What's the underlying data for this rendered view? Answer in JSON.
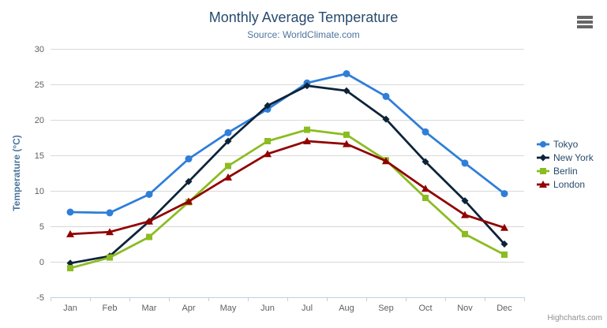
{
  "credits": {
    "label": "Highcharts.com"
  },
  "export_menu": {
    "icon": "hamburger-icon"
  },
  "colors": {
    "title": "#274b6d",
    "subtitle": "#4d759e",
    "axis_label": "#606060",
    "axis_title": "#4d759e",
    "grid": "#d8d8d8",
    "axis_line": "#c0d0e0",
    "legend_text": "#274b6d",
    "credits": "#909090",
    "menu_icon": "#666666"
  },
  "chart_data": {
    "type": "line",
    "title": "Monthly Average Temperature",
    "subtitle": "Source: WorldClimate.com",
    "xlabel": "",
    "ylabel": "Temperature (°C)",
    "ylim": [
      -5,
      30
    ],
    "yticks": [
      -5,
      0,
      5,
      10,
      15,
      20,
      25,
      30
    ],
    "grid": true,
    "legend_position": "right",
    "categories": [
      "Jan",
      "Feb",
      "Mar",
      "Apr",
      "May",
      "Jun",
      "Jul",
      "Aug",
      "Sep",
      "Oct",
      "Nov",
      "Dec"
    ],
    "series": [
      {
        "name": "Tokyo",
        "color": "#2f7ed8",
        "marker": "circle",
        "values": [
          7.0,
          6.9,
          9.5,
          14.5,
          18.2,
          21.5,
          25.2,
          26.5,
          23.3,
          18.3,
          13.9,
          9.6
        ]
      },
      {
        "name": "New York",
        "color": "#0d233a",
        "marker": "diamond",
        "values": [
          -0.2,
          0.8,
          5.7,
          11.3,
          17.0,
          22.0,
          24.8,
          24.1,
          20.1,
          14.1,
          8.6,
          2.5
        ]
      },
      {
        "name": "Berlin",
        "color": "#8bbc21",
        "marker": "square",
        "values": [
          -0.9,
          0.6,
          3.5,
          8.4,
          13.5,
          17.0,
          18.6,
          17.9,
          14.3,
          9.0,
          3.9,
          1.0
        ]
      },
      {
        "name": "London",
        "color": "#910000",
        "marker": "triangle",
        "values": [
          3.9,
          4.2,
          5.7,
          8.5,
          11.9,
          15.2,
          17.0,
          16.6,
          14.2,
          10.3,
          6.6,
          4.8
        ]
      }
    ]
  }
}
